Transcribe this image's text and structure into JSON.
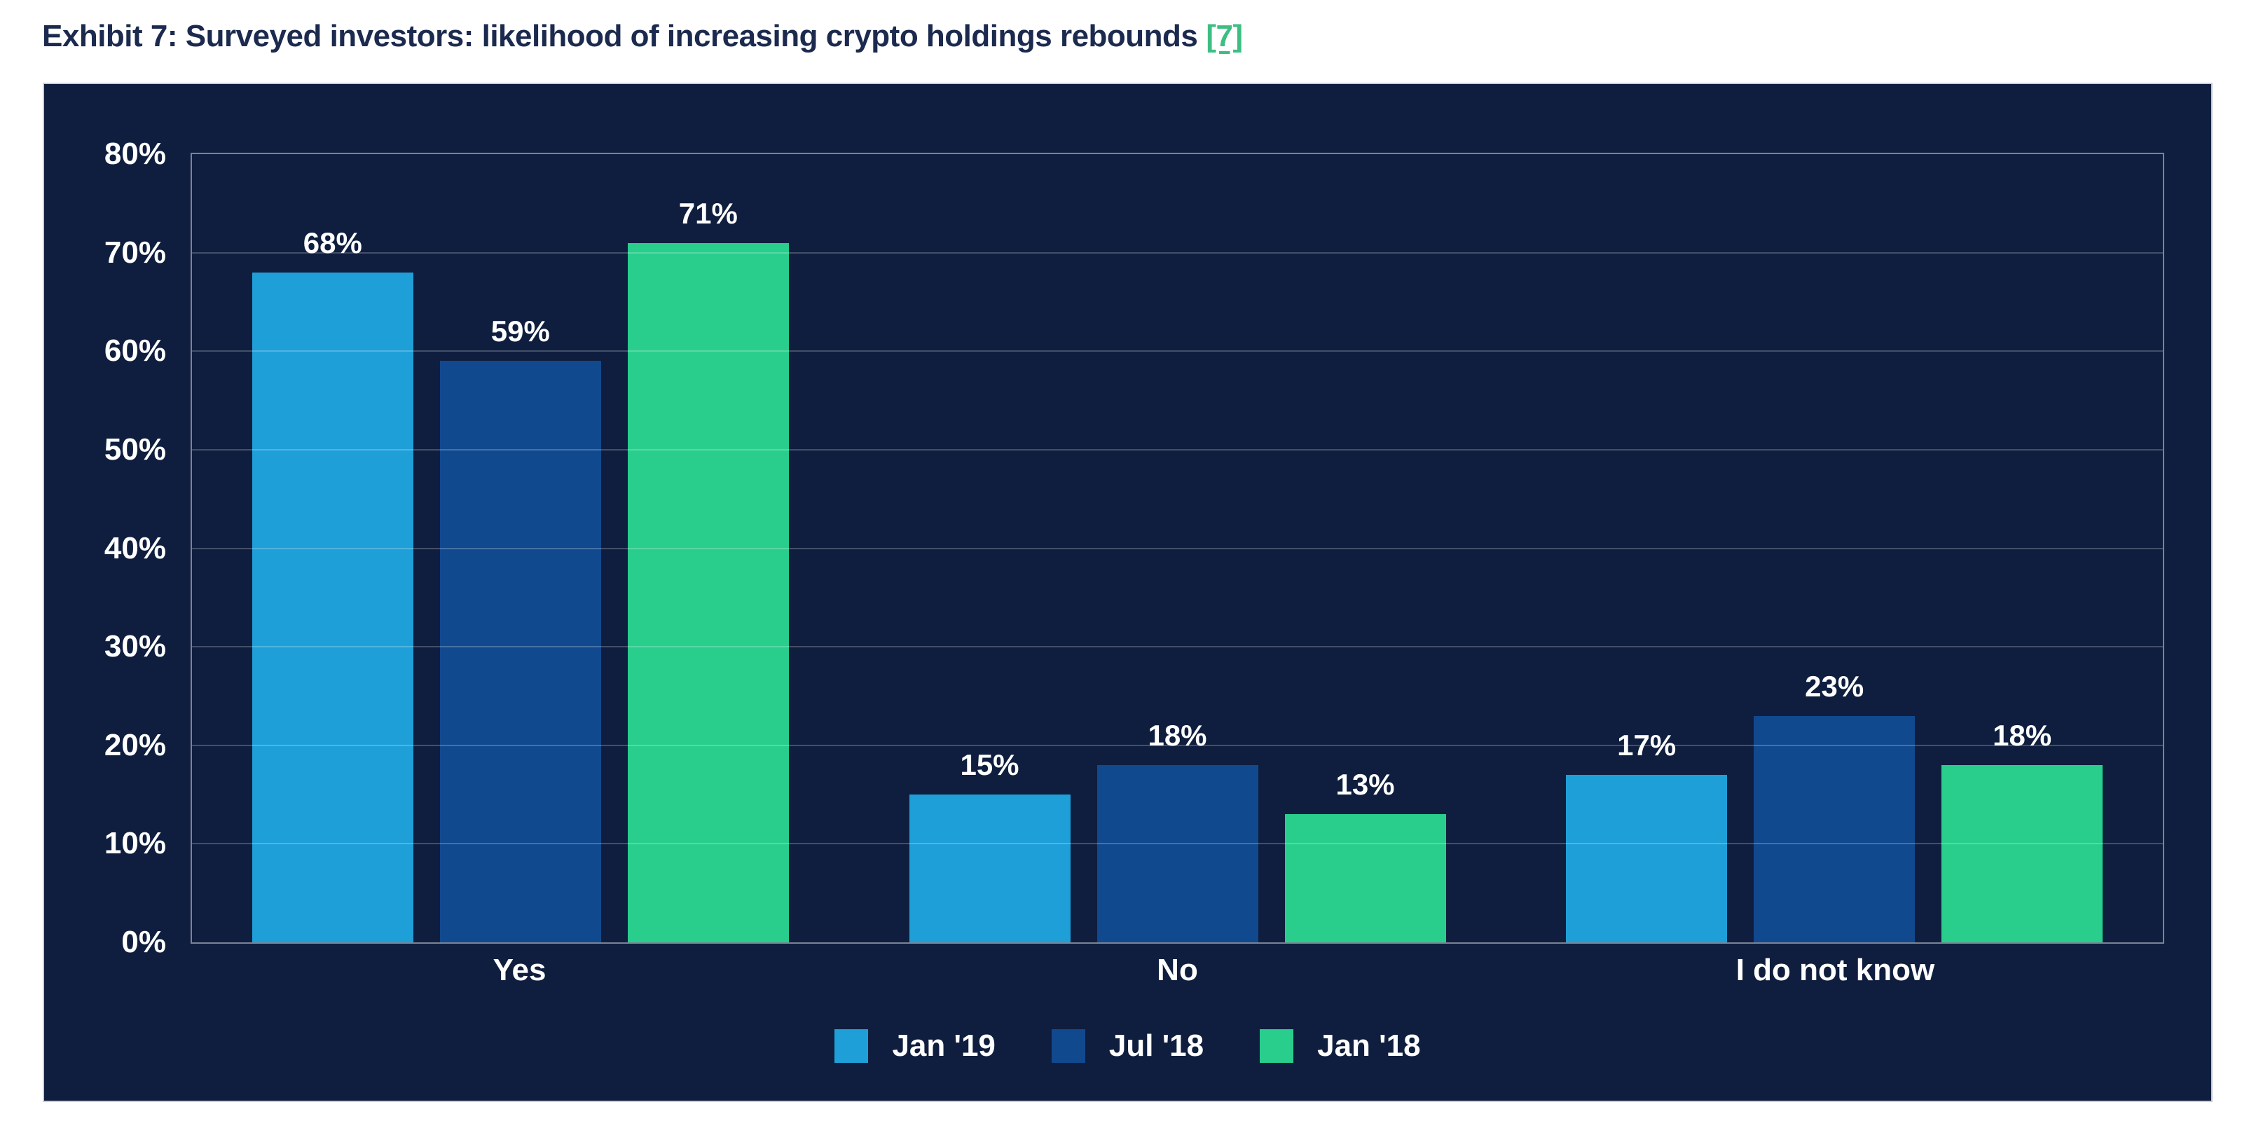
{
  "header": {
    "title": "Exhibit 7: Surveyed investors: likelihood of increasing crypto holdings rebounds",
    "link_label": "[7]",
    "title_color": "#1b2a4e",
    "link_color": "#3dbe83"
  },
  "chart_data": {
    "type": "bar",
    "categories": [
      "Yes",
      "No",
      "I do not know"
    ],
    "series": [
      {
        "name": "Jan '19",
        "color": "#1f9fd8",
        "values": [
          68,
          15,
          17
        ]
      },
      {
        "name": "Jul '18",
        "color": "#11498f",
        "values": [
          59,
          18,
          23
        ]
      },
      {
        "name": "Jan '18",
        "color": "#29ce8d",
        "values": [
          71,
          13,
          18
        ]
      }
    ],
    "value_suffix": "%",
    "ylim": [
      0,
      80
    ],
    "ytick_step": 10,
    "ytick_labels": [
      "0%",
      "10%",
      "20%",
      "30%",
      "40%",
      "50%",
      "60%",
      "70%",
      "80%"
    ],
    "grid": true,
    "legend_position": "bottom",
    "panel_bg": "#0f1e3e",
    "label_color": "#ffffff"
  }
}
